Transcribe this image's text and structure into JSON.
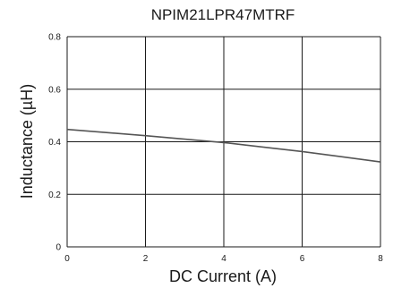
{
  "chart_data": {
    "type": "line",
    "title": "NPIM21LPR47MTRF",
    "xlabel": "DC Current (A)",
    "ylabel": "Inductance (µH)",
    "xlim": [
      0,
      8
    ],
    "ylim": [
      0,
      0.8
    ],
    "x_ticks": [
      "0",
      "2",
      "4",
      "6",
      "8"
    ],
    "y_ticks": [
      "0",
      "0.2",
      "0.4",
      "0.6",
      "0.8"
    ],
    "grid": true,
    "series": [
      {
        "x": [
          0,
          1,
          2,
          3,
          4,
          5,
          6,
          7,
          8
        ],
        "values": [
          0.447,
          0.435,
          0.423,
          0.41,
          0.397,
          0.38,
          0.363,
          0.343,
          0.323
        ]
      }
    ],
    "colors": {
      "line": "#555555",
      "grid": "#1a1a1a",
      "axes": "#1a1a1a"
    }
  }
}
